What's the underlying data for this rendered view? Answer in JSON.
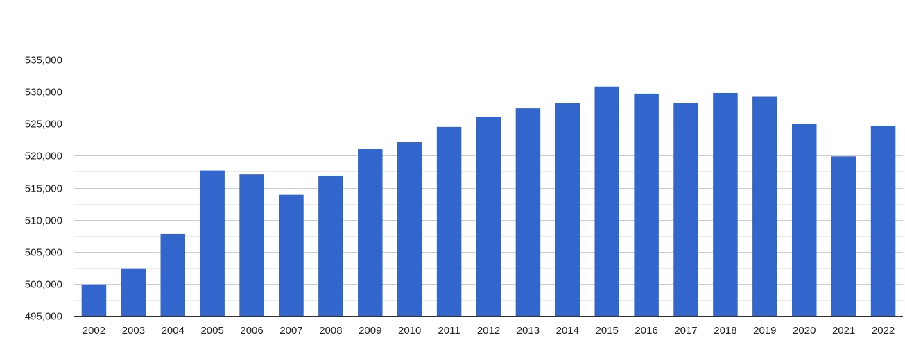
{
  "chart_data": {
    "type": "bar",
    "title": "",
    "xlabel": "",
    "ylabel": "",
    "categories": [
      "2002",
      "2003",
      "2004",
      "2005",
      "2006",
      "2007",
      "2008",
      "2009",
      "2010",
      "2011",
      "2012",
      "2013",
      "2014",
      "2015",
      "2016",
      "2017",
      "2018",
      "2019",
      "2020",
      "2021",
      "2022"
    ],
    "values": [
      499900,
      502400,
      507800,
      517700,
      517100,
      513900,
      516900,
      521100,
      522100,
      524500,
      526100,
      527400,
      528200,
      530800,
      529700,
      528200,
      529800,
      529200,
      525000,
      519900,
      524700
    ],
    "ylim": [
      495000,
      535000
    ],
    "y_ticks": [
      495000,
      500000,
      505000,
      510000,
      515000,
      520000,
      525000,
      530000,
      535000
    ],
    "y_tick_labels": [
      "495,000",
      "500,000",
      "505,000",
      "510,000",
      "515,000",
      "520,000",
      "525,000",
      "530,000",
      "535,000"
    ],
    "grid": true,
    "minor_grid": true,
    "legend": "none",
    "colors": {
      "bar": "#3366cc",
      "major_grid": "#cccccc",
      "minor_grid": "#ebebeb",
      "text": "#222222"
    }
  }
}
